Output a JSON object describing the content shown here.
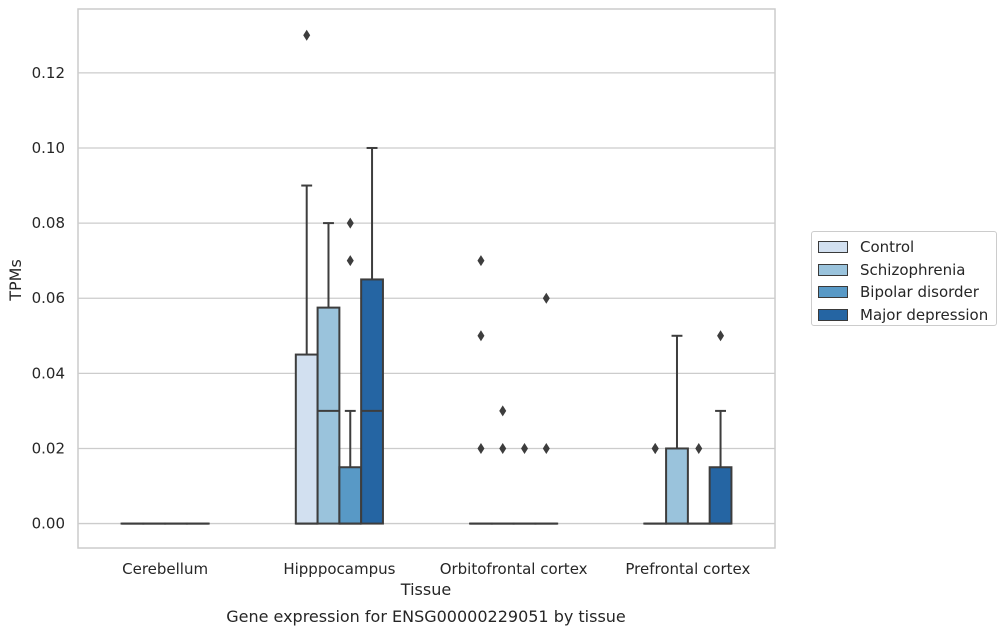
{
  "chart_data": {
    "type": "box",
    "title": "Gene expression for ENSG00000229051 by tissue",
    "xlabel": "Tissue",
    "ylabel": "TPMs",
    "ylim": [
      -0.0065,
      0.137
    ],
    "yticks": [
      "0.00",
      "0.02",
      "0.04",
      "0.06",
      "0.08",
      "0.10",
      "0.12"
    ],
    "grid": "horizontal",
    "legend_position": "right",
    "categories": [
      "Cerebellum",
      "Hipppocampus",
      "Orbitofrontal cortex",
      "Prefrontal cortex"
    ],
    "series": [
      {
        "name": "Control",
        "color": "#d2e0f0",
        "boxes": [
          {
            "q1": 0,
            "median": 0,
            "q3": 0,
            "whisker_low": 0,
            "whisker_high": 0,
            "outliers": []
          },
          {
            "q1": 0,
            "median": 0,
            "q3": 0.045,
            "whisker_low": 0,
            "whisker_high": 0.09,
            "outliers": [
              0.13
            ]
          },
          {
            "q1": 0,
            "median": 0,
            "q3": 0,
            "whisker_low": 0,
            "whisker_high": 0,
            "outliers": [
              0.02,
              0.05,
              0.07
            ]
          },
          {
            "q1": 0,
            "median": 0,
            "q3": 0,
            "whisker_low": 0,
            "whisker_high": 0,
            "outliers": [
              0.02,
              0.02
            ]
          }
        ]
      },
      {
        "name": "Schizophrenia",
        "color": "#9ac3dc",
        "boxes": [
          {
            "q1": 0,
            "median": 0,
            "q3": 0,
            "whisker_low": 0,
            "whisker_high": 0,
            "outliers": []
          },
          {
            "q1": 0,
            "median": 0.03,
            "q3": 0.0575,
            "whisker_low": 0,
            "whisker_high": 0.08,
            "outliers": []
          },
          {
            "q1": 0,
            "median": 0,
            "q3": 0,
            "whisker_low": 0,
            "whisker_high": 0,
            "outliers": [
              0.02,
              0.03
            ]
          },
          {
            "q1": 0,
            "median": 0,
            "q3": 0.02,
            "whisker_low": 0,
            "whisker_high": 0.05,
            "outliers": []
          }
        ]
      },
      {
        "name": "Bipolar disorder",
        "color": "#5899c6",
        "boxes": [
          {
            "q1": 0,
            "median": 0,
            "q3": 0,
            "whisker_low": 0,
            "whisker_high": 0,
            "outliers": []
          },
          {
            "q1": 0,
            "median": 0,
            "q3": 0.015,
            "whisker_low": 0,
            "whisker_high": 0.03,
            "outliers": [
              0.07,
              0.08
            ]
          },
          {
            "q1": 0,
            "median": 0,
            "q3": 0,
            "whisker_low": 0,
            "whisker_high": 0,
            "outliers": [
              0.02
            ]
          },
          {
            "q1": 0,
            "median": 0,
            "q3": 0,
            "whisker_low": 0,
            "whisker_high": 0,
            "outliers": [
              0.02
            ]
          }
        ]
      },
      {
        "name": "Major depression",
        "color": "#2565a3",
        "boxes": [
          {
            "q1": 0,
            "median": 0,
            "q3": 0,
            "whisker_low": 0,
            "whisker_high": 0,
            "outliers": []
          },
          {
            "q1": 0,
            "median": 0.03,
            "q3": 0.065,
            "whisker_low": 0,
            "whisker_high": 0.1,
            "outliers": []
          },
          {
            "q1": 0,
            "median": 0,
            "q3": 0,
            "whisker_low": 0,
            "whisker_high": 0,
            "outliers": [
              0.02,
              0.06
            ]
          },
          {
            "q1": 0,
            "median": 0,
            "q3": 0.015,
            "whisker_low": 0,
            "whisker_high": 0.03,
            "outliers": [
              0.05
            ]
          }
        ]
      }
    ]
  }
}
